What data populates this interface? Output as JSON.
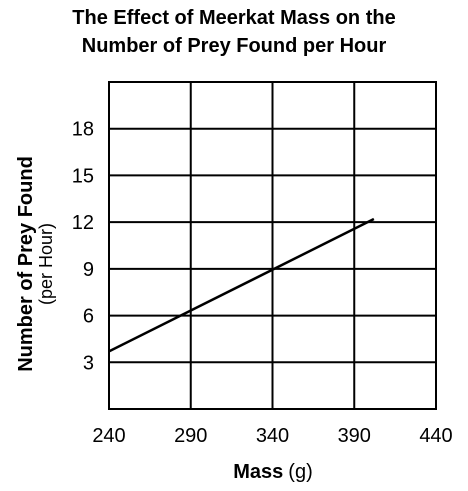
{
  "chart_data": {
    "type": "line",
    "title_line1": "The Effect of Meerkat Mass on the",
    "title_line2": "Number of Prey Found per Hour",
    "xlabel": "Mass",
    "xlabel_unit": "(g)",
    "ylabel": "Number of Prey Found",
    "ylabel_sub": "(per Hour)",
    "xlim": [
      240,
      440
    ],
    "ylim": [
      0,
      21
    ],
    "x_ticks": [
      240,
      290,
      340,
      390,
      440
    ],
    "y_ticks": [
      3,
      6,
      9,
      12,
      15,
      18
    ],
    "grid": true,
    "series": [
      {
        "x": [
          240,
          402
        ],
        "y": [
          3.7,
          12.2
        ]
      }
    ]
  }
}
